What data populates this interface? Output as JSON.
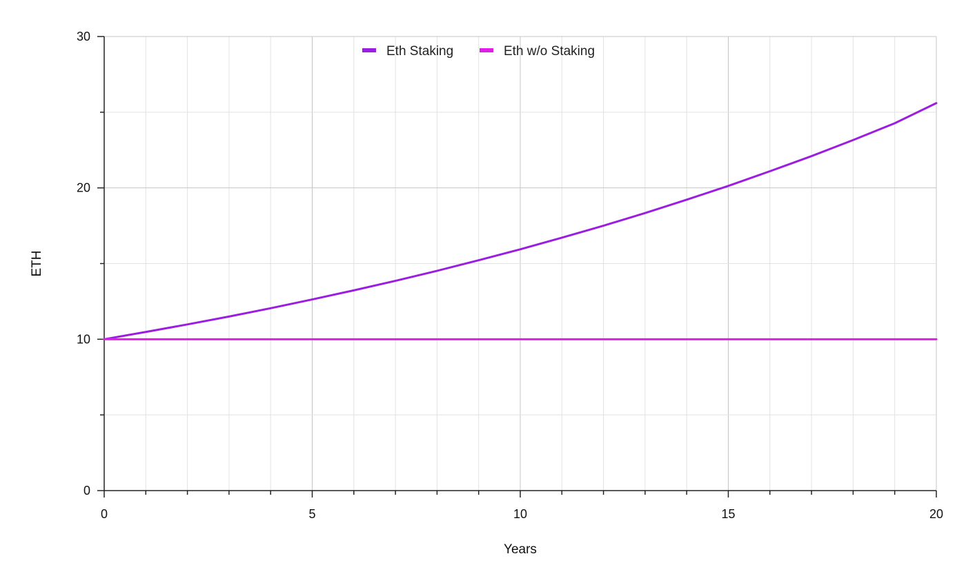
{
  "chart_data": {
    "type": "line",
    "title": "",
    "xlabel": "Years",
    "ylabel": "ETH",
    "xlim": [
      0,
      20
    ],
    "ylim": [
      0,
      30
    ],
    "x_ticks": [
      "0",
      "5",
      "10",
      "15",
      "20"
    ],
    "y_ticks": [
      "0",
      "10",
      "20",
      "30"
    ],
    "grid": true,
    "legend_position": "top-center",
    "x": [
      0,
      1,
      2,
      3,
      4,
      5,
      6,
      7,
      8,
      9,
      10,
      11,
      12,
      13,
      14,
      15,
      16,
      17,
      18,
      19,
      20
    ],
    "series": [
      {
        "name": "Eth Staking",
        "color": "#9b1ee0",
        "values": [
          10.0,
          10.48,
          10.98,
          11.5,
          12.05,
          12.63,
          13.23,
          13.86,
          14.52,
          15.22,
          15.94,
          16.71,
          17.5,
          18.34,
          19.22,
          20.13,
          21.1,
          22.1,
          23.16,
          24.27,
          25.6
        ]
      },
      {
        "name": "Eth w/o Staking",
        "color": "#e11ee6",
        "values": [
          10,
          10,
          10,
          10,
          10,
          10,
          10,
          10,
          10,
          10,
          10,
          10,
          10,
          10,
          10,
          10,
          10,
          10,
          10,
          10,
          10
        ]
      }
    ]
  }
}
